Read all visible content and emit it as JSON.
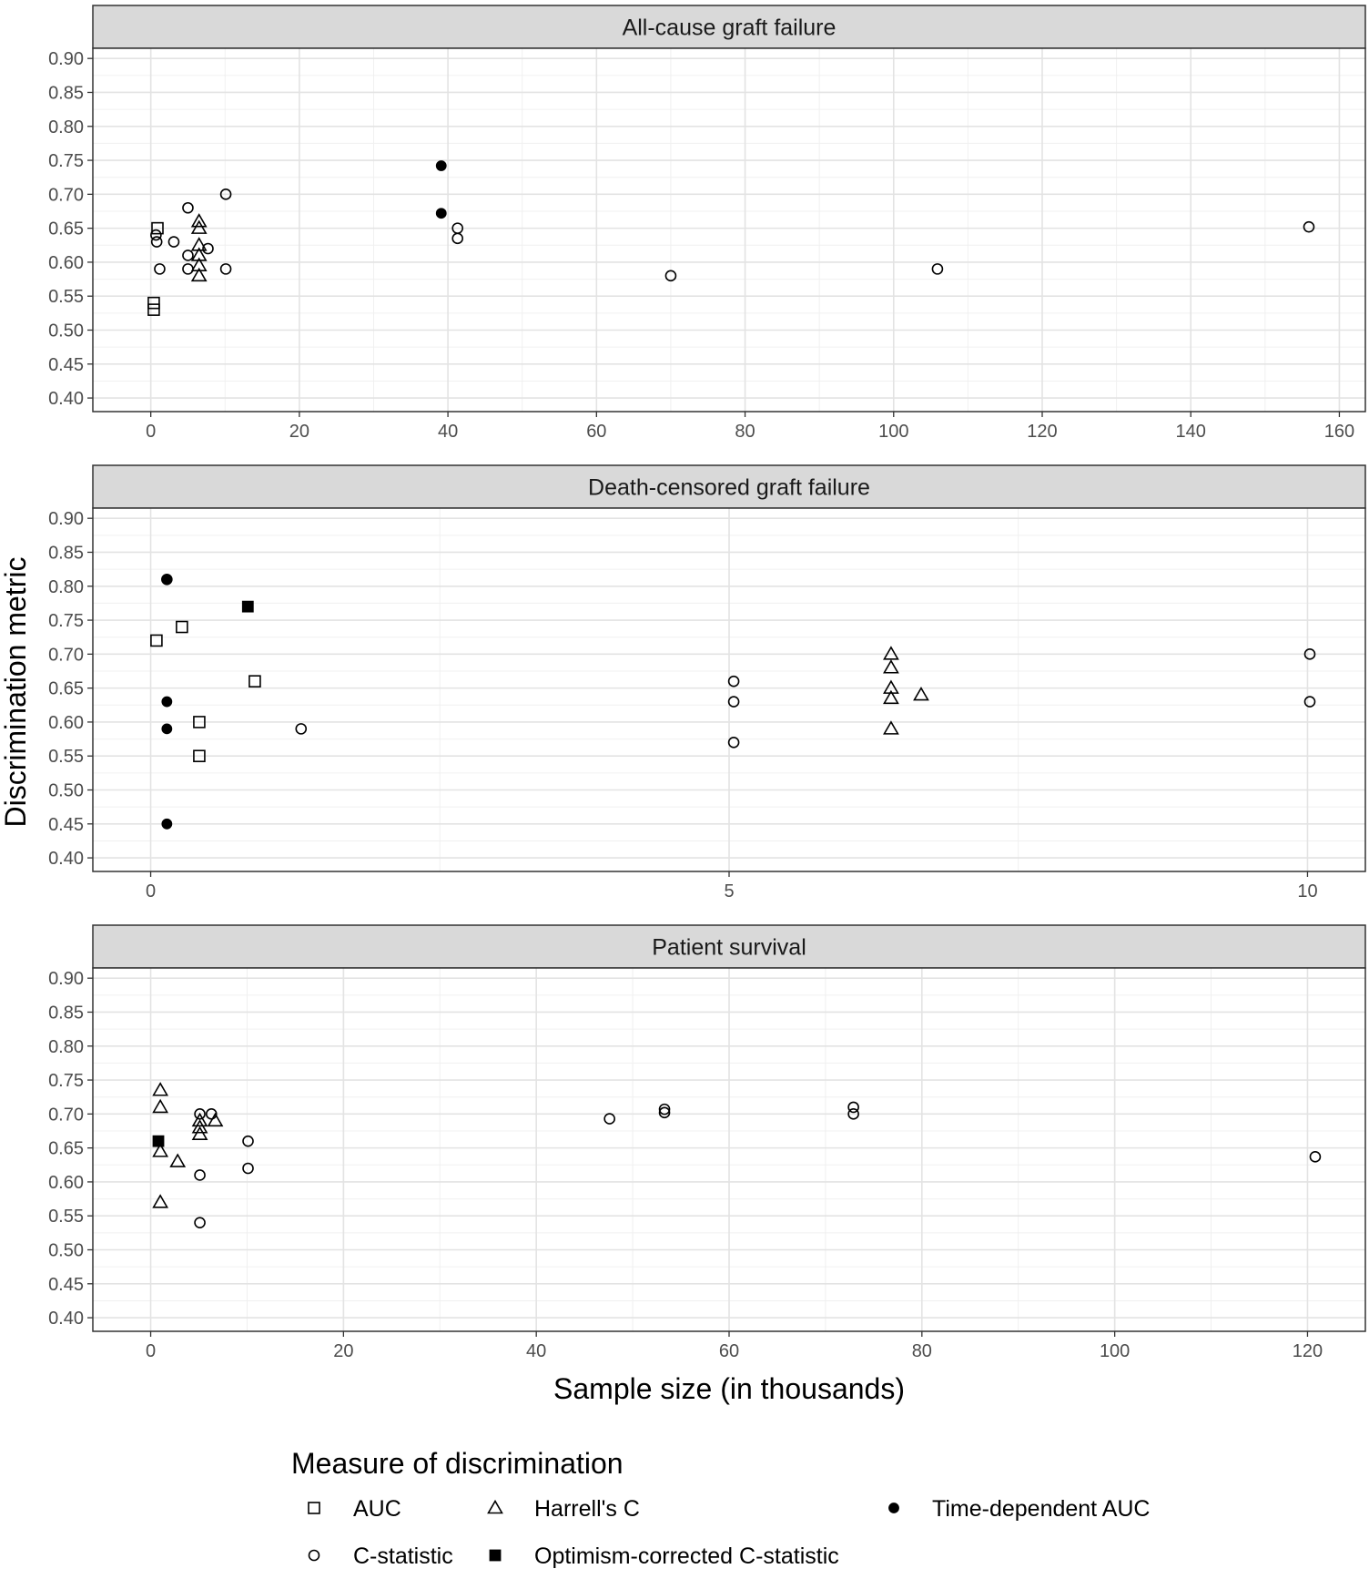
{
  "chart_data": {
    "type": "scatter",
    "xlabel": "Sample size (in thousands)",
    "ylabel": "Discrimination metric",
    "y_ticks": [
      "0.40",
      "0.45",
      "0.50",
      "0.55",
      "0.60",
      "0.65",
      "0.70",
      "0.75",
      "0.80",
      "0.85",
      "0.90"
    ],
    "ylim": [
      0.38,
      0.915
    ],
    "grid": true,
    "legend": {
      "title": "Measure of discrimination",
      "placement": "bottom",
      "entries": [
        {
          "key": "auc",
          "label": "AUC",
          "shape": "open-square"
        },
        {
          "key": "harrell",
          "label": "Harrell's C",
          "shape": "open-triangle"
        },
        {
          "key": "td_auc",
          "label": "Time-dependent AUC",
          "shape": "filled-circle"
        },
        {
          "key": "cstat",
          "label": "C-statistic",
          "shape": "open-circle"
        },
        {
          "key": "opt_c",
          "label": "Optimism-corrected C-statistic",
          "shape": "filled-square"
        }
      ]
    },
    "panels": [
      {
        "title": "All-cause graft failure",
        "xlim": [
          -7.8,
          163.5
        ],
        "x_ticks": [
          "0",
          "20",
          "40",
          "60",
          "80",
          "100",
          "120",
          "140",
          "160"
        ],
        "x_tick_values": [
          0,
          20,
          40,
          60,
          80,
          100,
          120,
          140,
          160
        ],
        "x_minor": [
          10,
          30,
          50,
          70,
          90,
          110,
          130,
          150
        ],
        "series": [
          {
            "key": "auc",
            "points": [
              [
                0.9,
                0.65
              ],
              [
                0.4,
                0.54
              ],
              [
                0.4,
                0.53
              ]
            ]
          },
          {
            "key": "cstat",
            "points": [
              [
                0.7,
                0.64
              ],
              [
                0.8,
                0.63
              ],
              [
                1.2,
                0.59
              ],
              [
                3.1,
                0.63
              ],
              [
                5.0,
                0.68
              ],
              [
                5.0,
                0.61
              ],
              [
                5.0,
                0.59
              ],
              [
                7.7,
                0.62
              ],
              [
                10.1,
                0.7
              ],
              [
                10.1,
                0.59
              ],
              [
                41.3,
                0.65
              ],
              [
                41.3,
                0.635
              ],
              [
                70.0,
                0.58
              ],
              [
                105.9,
                0.59
              ],
              [
                155.9,
                0.652
              ]
            ]
          },
          {
            "key": "harrell",
            "points": [
              [
                6.5,
                0.66
              ],
              [
                6.5,
                0.65
              ],
              [
                6.5,
                0.625
              ],
              [
                6.5,
                0.61
              ],
              [
                6.5,
                0.595
              ],
              [
                6.5,
                0.58
              ]
            ]
          },
          {
            "key": "td_auc",
            "points": [
              [
                39.1,
                0.742
              ],
              [
                39.1,
                0.672
              ]
            ]
          },
          {
            "key": "opt_c",
            "points": []
          }
        ]
      },
      {
        "title": "Death-censored graft failure",
        "xlim": [
          -0.5,
          10.5
        ],
        "x_ticks": [
          "0",
          "5",
          "10"
        ],
        "x_tick_values": [
          0,
          5,
          10
        ],
        "x_minor": [
          2.5,
          7.5
        ],
        "series": [
          {
            "key": "auc",
            "points": [
              [
                0.05,
                0.72
              ],
              [
                0.27,
                0.74
              ],
              [
                0.42,
                0.6
              ],
              [
                0.42,
                0.55
              ],
              [
                0.9,
                0.66
              ]
            ]
          },
          {
            "key": "cstat",
            "points": [
              [
                0.14,
                0.81
              ],
              [
                1.3,
                0.59
              ],
              [
                5.04,
                0.66
              ],
              [
                5.04,
                0.63
              ],
              [
                5.04,
                0.57
              ],
              [
                10.02,
                0.7
              ],
              [
                10.02,
                0.63
              ]
            ]
          },
          {
            "key": "harrell",
            "points": [
              [
                6.4,
                0.7
              ],
              [
                6.4,
                0.68
              ],
              [
                6.4,
                0.65
              ],
              [
                6.4,
                0.635
              ],
              [
                6.4,
                0.59
              ],
              [
                6.66,
                0.64
              ]
            ]
          },
          {
            "key": "td_auc",
            "points": [
              [
                0.14,
                0.81
              ],
              [
                0.14,
                0.63
              ],
              [
                0.14,
                0.59
              ],
              [
                0.14,
                0.45
              ]
            ]
          },
          {
            "key": "opt_c",
            "points": [
              [
                0.84,
                0.77
              ]
            ]
          }
        ]
      },
      {
        "title": "Patient survival",
        "xlim": [
          -6.0,
          126.0
        ],
        "x_ticks": [
          "0",
          "20",
          "40",
          "60",
          "80",
          "100",
          "120"
        ],
        "x_tick_values": [
          0,
          20,
          40,
          60,
          80,
          100,
          120
        ],
        "x_minor": [
          10,
          30,
          50,
          70,
          90,
          110
        ],
        "series": [
          {
            "key": "auc",
            "points": []
          },
          {
            "key": "cstat",
            "points": [
              [
                5.1,
                0.7
              ],
              [
                5.1,
                0.61
              ],
              [
                5.1,
                0.54
              ],
              [
                6.3,
                0.7
              ],
              [
                10.1,
                0.66
              ],
              [
                10.1,
                0.62
              ],
              [
                47.6,
                0.693
              ],
              [
                53.3,
                0.707
              ],
              [
                53.3,
                0.702
              ],
              [
                72.9,
                0.71
              ],
              [
                72.9,
                0.7
              ],
              [
                120.8,
                0.637
              ]
            ]
          },
          {
            "key": "harrell",
            "points": [
              [
                1.0,
                0.735
              ],
              [
                1.0,
                0.71
              ],
              [
                1.0,
                0.645
              ],
              [
                1.0,
                0.57
              ],
              [
                2.8,
                0.63
              ],
              [
                5.1,
                0.69
              ],
              [
                5.1,
                0.68
              ],
              [
                5.1,
                0.67
              ],
              [
                6.7,
                0.69
              ]
            ]
          },
          {
            "key": "td_auc",
            "points": []
          },
          {
            "key": "opt_c",
            "points": [
              [
                0.8,
                0.66
              ]
            ]
          }
        ]
      }
    ]
  }
}
